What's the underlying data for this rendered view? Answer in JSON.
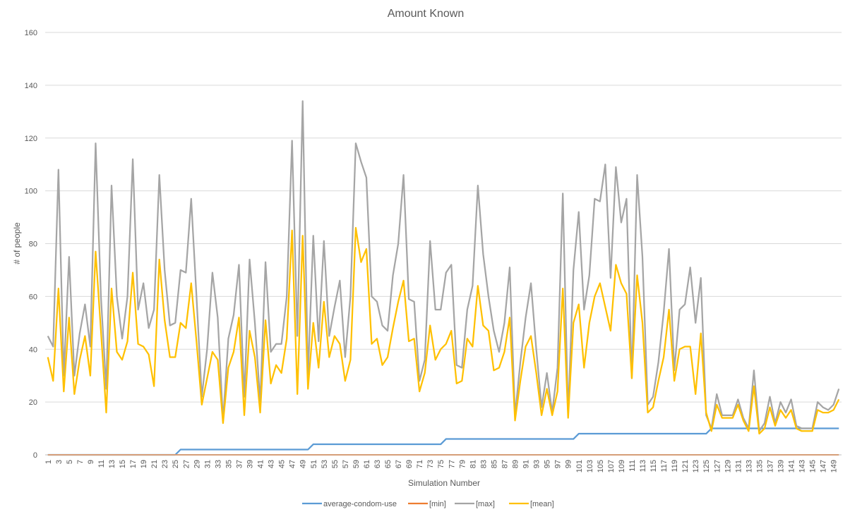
{
  "chart_data": {
    "type": "line",
    "title": "Amount Known",
    "xlabel": "Simulation Number",
    "ylabel": "# of people",
    "ylim": [
      0,
      160
    ],
    "yticks": [
      0,
      20,
      40,
      60,
      80,
      100,
      120,
      140,
      160
    ],
    "x": [
      1,
      2,
      3,
      4,
      5,
      6,
      7,
      8,
      9,
      10,
      11,
      12,
      13,
      14,
      15,
      16,
      17,
      18,
      19,
      20,
      21,
      22,
      23,
      24,
      25,
      26,
      27,
      28,
      29,
      30,
      31,
      32,
      33,
      34,
      35,
      36,
      37,
      38,
      39,
      40,
      41,
      42,
      43,
      44,
      45,
      46,
      47,
      48,
      49,
      50,
      51,
      52,
      53,
      54,
      55,
      56,
      57,
      58,
      59,
      60,
      61,
      62,
      63,
      64,
      65,
      66,
      67,
      68,
      69,
      70,
      71,
      72,
      73,
      74,
      75,
      76,
      77,
      78,
      79,
      80,
      81,
      82,
      83,
      84,
      85,
      86,
      87,
      88,
      89,
      90,
      91,
      92,
      93,
      94,
      95,
      96,
      97,
      98,
      99,
      100,
      101,
      102,
      103,
      104,
      105,
      106,
      107,
      108,
      109,
      110,
      111,
      112,
      113,
      114,
      115,
      116,
      117,
      118,
      119,
      120,
      121,
      122,
      123,
      124,
      125,
      126,
      127,
      128,
      129,
      130,
      131,
      132,
      133,
      134,
      135,
      136,
      137,
      138,
      139,
      140,
      141,
      142,
      143,
      144,
      145,
      146,
      147,
      148,
      149,
      150
    ],
    "xtick_labels": [
      1,
      3,
      5,
      7,
      9,
      11,
      13,
      15,
      17,
      19,
      21,
      23,
      25,
      27,
      29,
      31,
      33,
      35,
      37,
      39,
      41,
      43,
      45,
      47,
      49,
      51,
      53,
      55,
      57,
      59,
      61,
      63,
      65,
      67,
      69,
      71,
      73,
      75,
      77,
      79,
      81,
      83,
      85,
      87,
      89,
      91,
      93,
      95,
      97,
      99,
      101,
      103,
      105,
      107,
      109,
      111,
      113,
      115,
      117,
      119,
      121,
      123,
      125,
      127,
      129,
      131,
      133,
      135,
      137,
      139,
      141,
      143,
      145,
      147,
      149
    ],
    "grid": true,
    "legend_position": "bottom",
    "series": [
      {
        "name": "average-condom-use",
        "color": "#5B9BD5",
        "values": [
          0,
          0,
          0,
          0,
          0,
          0,
          0,
          0,
          0,
          0,
          0,
          0,
          0,
          0,
          0,
          0,
          0,
          0,
          0,
          0,
          0,
          0,
          0,
          0,
          0,
          2,
          2,
          2,
          2,
          2,
          2,
          2,
          2,
          2,
          2,
          2,
          2,
          2,
          2,
          2,
          2,
          2,
          2,
          2,
          2,
          2,
          2,
          2,
          2,
          2,
          4,
          4,
          4,
          4,
          4,
          4,
          4,
          4,
          4,
          4,
          4,
          4,
          4,
          4,
          4,
          4,
          4,
          4,
          4,
          4,
          4,
          4,
          4,
          4,
          4,
          6,
          6,
          6,
          6,
          6,
          6,
          6,
          6,
          6,
          6,
          6,
          6,
          6,
          6,
          6,
          6,
          6,
          6,
          6,
          6,
          6,
          6,
          6,
          6,
          6,
          8,
          8,
          8,
          8,
          8,
          8,
          8,
          8,
          8,
          8,
          8,
          8,
          8,
          8,
          8,
          8,
          8,
          8,
          8,
          8,
          8,
          8,
          8,
          8,
          8,
          10,
          10,
          10,
          10,
          10,
          10,
          10,
          10,
          10,
          10,
          10,
          10,
          10,
          10,
          10,
          10,
          10,
          10,
          10,
          10,
          10,
          10,
          10,
          10,
          10
        ]
      },
      {
        "name": "[min]",
        "color": "#ED7D31",
        "values": [
          0,
          0,
          0,
          0,
          0,
          0,
          0,
          0,
          0,
          0,
          0,
          0,
          0,
          0,
          0,
          0,
          0,
          0,
          0,
          0,
          0,
          0,
          0,
          0,
          0,
          0,
          0,
          0,
          0,
          0,
          0,
          0,
          0,
          0,
          0,
          0,
          0,
          0,
          0,
          0,
          0,
          0,
          0,
          0,
          0,
          0,
          0,
          0,
          0,
          0,
          0,
          0,
          0,
          0,
          0,
          0,
          0,
          0,
          0,
          0,
          0,
          0,
          0,
          0,
          0,
          0,
          0,
          0,
          0,
          0,
          0,
          0,
          0,
          0,
          0,
          0,
          0,
          0,
          0,
          0,
          0,
          0,
          0,
          0,
          0,
          0,
          0,
          0,
          0,
          0,
          0,
          0,
          0,
          0,
          0,
          0,
          0,
          0,
          0,
          0,
          0,
          0,
          0,
          0,
          0,
          0,
          0,
          0,
          0,
          0,
          0,
          0,
          0,
          0,
          0,
          0,
          0,
          0,
          0,
          0,
          0,
          0,
          0,
          0,
          0,
          0,
          0,
          0,
          0,
          0,
          0,
          0,
          0,
          0,
          0,
          0,
          0,
          0,
          0,
          0,
          0,
          0,
          0,
          0,
          0,
          0,
          0,
          0,
          0,
          0
        ]
      },
      {
        "name": "[max]",
        "color": "#A5A5A5",
        "values": [
          45,
          41,
          108,
          30,
          75,
          30,
          46,
          57,
          41,
          118,
          60,
          25,
          102,
          60,
          44,
          60,
          112,
          55,
          65,
          48,
          55,
          106,
          70,
          49,
          50,
          70,
          69,
          97,
          60,
          22,
          40,
          69,
          52,
          13,
          44,
          53,
          72,
          22,
          74,
          50,
          20,
          73,
          39,
          42,
          42,
          60,
          119,
          45,
          134,
          30,
          83,
          43,
          81,
          45,
          56,
          66,
          37,
          60,
          118,
          111,
          105,
          60,
          58,
          49,
          47,
          68,
          80,
          106,
          59,
          58,
          28,
          36,
          81,
          55,
          55,
          69,
          72,
          34,
          33,
          55,
          64,
          102,
          76,
          60,
          47,
          39,
          50,
          71,
          15,
          35,
          52,
          65,
          40,
          18,
          31,
          16,
          33,
          99,
          15,
          70,
          92,
          55,
          68,
          97,
          96,
          110,
          67,
          109,
          88,
          97,
          29,
          106,
          75,
          19,
          22,
          35,
          54,
          78,
          32,
          55,
          57,
          71,
          50,
          67,
          15,
          10,
          23,
          15,
          15,
          15,
          21,
          14,
          10,
          32,
          9,
          12,
          22,
          12,
          20,
          16,
          21,
          11,
          10,
          10,
          10,
          20,
          18,
          17,
          19,
          25
        ]
      },
      {
        "name": "[mean]",
        "color": "#FFC000",
        "values": [
          37,
          28,
          63,
          24,
          52,
          23,
          36,
          45,
          30,
          77,
          47,
          16,
          63,
          39,
          36,
          43,
          69,
          42,
          41,
          38,
          26,
          74,
          51,
          37,
          37,
          50,
          48,
          65,
          43,
          19,
          29,
          39,
          36,
          12,
          33,
          39,
          52,
          15,
          47,
          37,
          16,
          51,
          27,
          34,
          31,
          44,
          85,
          23,
          83,
          25,
          50,
          33,
          58,
          37,
          45,
          42,
          28,
          36,
          86,
          73,
          78,
          42,
          44,
          34,
          37,
          48,
          58,
          66,
          43,
          44,
          24,
          31,
          49,
          36,
          40,
          42,
          47,
          27,
          28,
          44,
          41,
          64,
          49,
          47,
          32,
          33,
          39,
          52,
          13,
          28,
          41,
          45,
          31,
          15,
          25,
          15,
          24,
          63,
          14,
          50,
          57,
          33,
          50,
          60,
          65,
          56,
          47,
          72,
          65,
          61,
          29,
          68,
          50,
          16,
          18,
          28,
          37,
          55,
          28,
          40,
          41,
          41,
          23,
          46,
          16,
          9,
          19,
          14,
          14,
          14,
          19,
          13,
          9,
          26,
          8,
          10,
          18,
          11,
          17,
          14,
          17,
          10,
          9,
          9,
          9,
          17,
          16,
          16,
          17,
          21
        ]
      }
    ]
  }
}
